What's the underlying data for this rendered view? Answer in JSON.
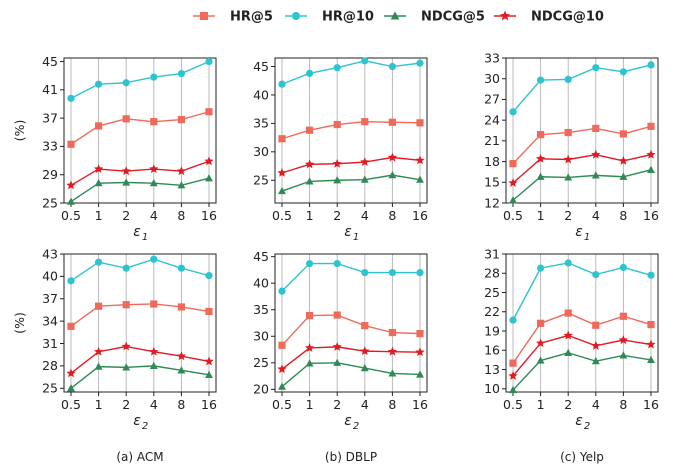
{
  "legend": {
    "hr5": "HR@5",
    "hr10": "HR@10",
    "ndcg5": "NDCG@5",
    "ndcg10": "NDCG@10"
  },
  "colors": {
    "hr5": "#ef6a5a",
    "hr10": "#2ec4cf",
    "ndcg5": "#2f8a55",
    "ndcg10": "#e01b24"
  },
  "captions": [
    "(a) ACM",
    "(b) DBLP",
    "(c) Yelp"
  ],
  "chart_data": [
    {
      "type": "line",
      "x": [
        "0.5",
        "1",
        "2",
        "4",
        "8",
        "16"
      ],
      "xlabel": "ε1",
      "ylabel": "(%)",
      "ylim": [
        25,
        45.5
      ],
      "yticks": [
        25,
        29,
        33,
        37,
        41,
        45
      ],
      "grid": "vertical",
      "legend": "top-center",
      "series": [
        {
          "name": "HR@5",
          "values": [
            33.3,
            35.9,
            36.9,
            36.5,
            36.8,
            37.9
          ]
        },
        {
          "name": "HR@10",
          "values": [
            39.8,
            41.8,
            42.0,
            42.8,
            43.3,
            45.0
          ]
        },
        {
          "name": "NDCG@5",
          "values": [
            25.2,
            27.8,
            27.9,
            27.8,
            27.5,
            28.5
          ]
        },
        {
          "name": "NDCG@10",
          "values": [
            27.5,
            29.8,
            29.5,
            29.8,
            29.5,
            30.9
          ]
        }
      ]
    },
    {
      "type": "line",
      "x": [
        "0.5",
        "1",
        "2",
        "4",
        "8",
        "16"
      ],
      "xlabel": "ε1",
      "ylabel": "",
      "ylim": [
        21,
        46.5
      ],
      "yticks": [
        25,
        30,
        35,
        40,
        45
      ],
      "grid": "vertical",
      "series": [
        {
          "name": "HR@5",
          "values": [
            32.3,
            33.8,
            34.8,
            35.3,
            35.2,
            35.1
          ]
        },
        {
          "name": "HR@10",
          "values": [
            41.9,
            43.8,
            44.8,
            46.0,
            45.0,
            45.6
          ]
        },
        {
          "name": "NDCG@5",
          "values": [
            23.1,
            24.8,
            25.0,
            25.1,
            25.9,
            25.1
          ]
        },
        {
          "name": "NDCG@10",
          "values": [
            26.3,
            27.8,
            27.9,
            28.2,
            29.0,
            28.5
          ]
        }
      ]
    },
    {
      "type": "line",
      "x": [
        "0.5",
        "1",
        "2",
        "4",
        "8",
        "16"
      ],
      "xlabel": "ε1",
      "ylabel": "",
      "ylim": [
        12,
        33
      ],
      "yticks": [
        12,
        15,
        18,
        21,
        24,
        27,
        30,
        33
      ],
      "grid": "vertical",
      "series": [
        {
          "name": "HR@5",
          "values": [
            17.7,
            21.9,
            22.2,
            22.8,
            22.0,
            23.1
          ]
        },
        {
          "name": "HR@10",
          "values": [
            25.2,
            29.8,
            29.9,
            31.6,
            31.0,
            32.0
          ]
        },
        {
          "name": "NDCG@5",
          "values": [
            12.4,
            15.8,
            15.7,
            16.0,
            15.8,
            16.8
          ]
        },
        {
          "name": "NDCG@10",
          "values": [
            14.9,
            18.4,
            18.3,
            19.0,
            18.1,
            19.0
          ]
        }
      ]
    },
    {
      "type": "line",
      "x": [
        "0.5",
        "1",
        "2",
        "4",
        "8",
        "16"
      ],
      "xlabel": "ε2",
      "ylabel": "(%)",
      "ylim": [
        24.5,
        43
      ],
      "yticks": [
        25,
        28,
        31,
        34,
        37,
        40,
        43
      ],
      "grid": "vertical",
      "series": [
        {
          "name": "HR@5",
          "values": [
            33.3,
            36.0,
            36.2,
            36.3,
            35.9,
            35.3
          ]
        },
        {
          "name": "HR@10",
          "values": [
            39.4,
            41.9,
            41.1,
            42.3,
            41.1,
            40.1
          ]
        },
        {
          "name": "NDCG@5",
          "values": [
            25.0,
            27.9,
            27.8,
            28.0,
            27.4,
            26.8
          ]
        },
        {
          "name": "NDCG@10",
          "values": [
            27.0,
            29.9,
            30.6,
            29.9,
            29.3,
            28.6
          ]
        }
      ]
    },
    {
      "type": "line",
      "x": [
        "0.5",
        "1",
        "2",
        "4",
        "8",
        "16"
      ],
      "xlabel": "ε2",
      "ylabel": "",
      "ylim": [
        19.5,
        45.5
      ],
      "yticks": [
        20,
        25,
        30,
        35,
        40,
        45
      ],
      "grid": "vertical",
      "series": [
        {
          "name": "HR@5",
          "values": [
            28.3,
            33.9,
            34.0,
            32.0,
            30.7,
            30.5
          ]
        },
        {
          "name": "HR@10",
          "values": [
            38.5,
            43.7,
            43.7,
            42.0,
            42.0,
            42.0
          ]
        },
        {
          "name": "NDCG@5",
          "values": [
            20.5,
            24.9,
            25.0,
            24.0,
            23.0,
            22.8
          ]
        },
        {
          "name": "NDCG@10",
          "values": [
            23.8,
            27.8,
            28.0,
            27.2,
            27.1,
            27.0
          ]
        }
      ]
    },
    {
      "type": "line",
      "x": [
        "0.5",
        "1",
        "2",
        "4",
        "8",
        "16"
      ],
      "xlabel": "ε2",
      "ylabel": "",
      "ylim": [
        9.5,
        31
      ],
      "yticks": [
        10,
        13,
        16,
        19,
        22,
        25,
        28,
        31
      ],
      "grid": "vertical",
      "series": [
        {
          "name": "HR@5",
          "values": [
            14.0,
            20.2,
            21.8,
            19.9,
            21.3,
            20.0
          ]
        },
        {
          "name": "HR@10",
          "values": [
            20.7,
            28.8,
            29.6,
            27.8,
            28.9,
            27.7
          ]
        },
        {
          "name": "NDCG@5",
          "values": [
            9.8,
            14.4,
            15.6,
            14.3,
            15.2,
            14.5
          ]
        },
        {
          "name": "NDCG@10",
          "values": [
            12.0,
            17.1,
            18.3,
            16.7,
            17.6,
            16.9
          ]
        }
      ]
    }
  ]
}
